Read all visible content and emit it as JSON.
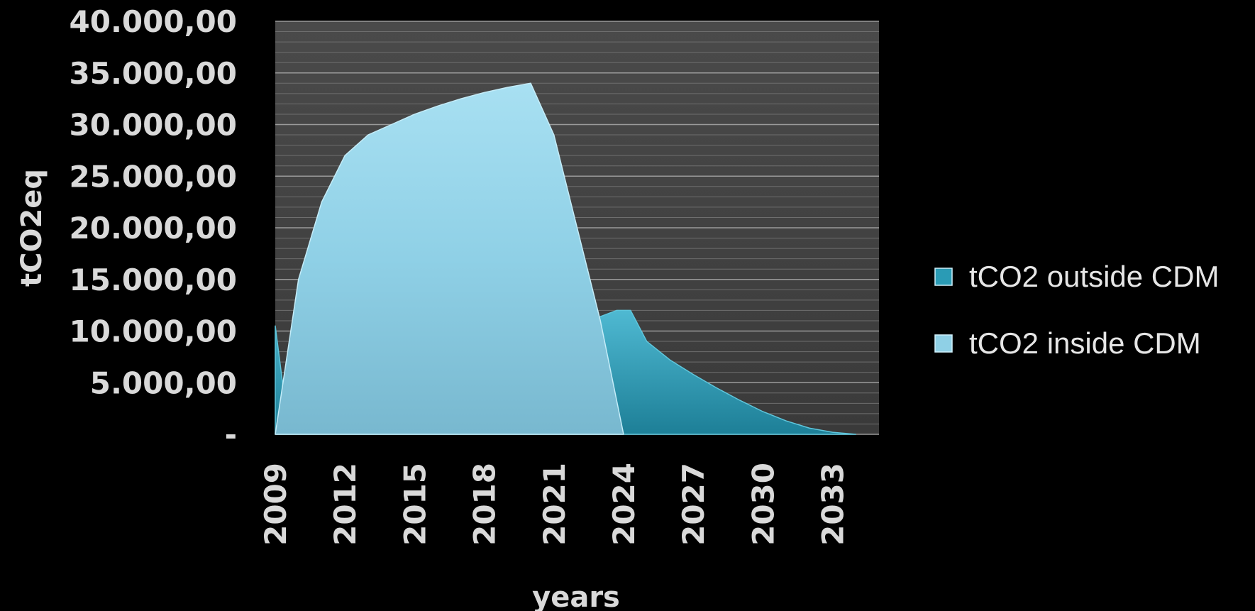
{
  "chart_data": {
    "type": "area",
    "title": "",
    "xlabel": "years",
    "ylabel": "tCO2eq",
    "ylim": [
      0,
      40000
    ],
    "yticks": [
      {
        "value": 0,
        "label": "-"
      },
      {
        "value": 5000,
        "label": "5.000,00"
      },
      {
        "value": 10000,
        "label": "10.000,00"
      },
      {
        "value": 15000,
        "label": "15.000,00"
      },
      {
        "value": 20000,
        "label": "20.000,00"
      },
      {
        "value": 25000,
        "label": "25.000,00"
      },
      {
        "value": 30000,
        "label": "30.000,00"
      },
      {
        "value": 35000,
        "label": "35.000,00"
      },
      {
        "value": 40000,
        "label": "40.000,00"
      }
    ],
    "xlim": [
      2009,
      2035
    ],
    "xticks": [
      2009,
      2012,
      2015,
      2018,
      2021,
      2024,
      2027,
      2030,
      2033
    ],
    "grid": true,
    "legend_position": "right",
    "series": [
      {
        "name": "tCO2 outside CDM",
        "color": "#2a9bb5",
        "points": [
          {
            "x": 2009,
            "y": 10500
          },
          {
            "x": 2009.6,
            "y": 0
          },
          {
            "x": 2023.7,
            "y": 12000
          },
          {
            "x": 2024.3,
            "y": 12000
          },
          {
            "x": 2025,
            "y": 9000
          },
          {
            "x": 2026,
            "y": 7200
          },
          {
            "x": 2027,
            "y": 5800
          },
          {
            "x": 2028,
            "y": 4500
          },
          {
            "x": 2029,
            "y": 3300
          },
          {
            "x": 2030,
            "y": 2200
          },
          {
            "x": 2031,
            "y": 1300
          },
          {
            "x": 2032,
            "y": 600
          },
          {
            "x": 2033,
            "y": 200
          },
          {
            "x": 2034,
            "y": 0
          }
        ]
      },
      {
        "name": "tCO2 inside CDM",
        "color": "#8fd0e6",
        "points": [
          {
            "x": 2009,
            "y": 0
          },
          {
            "x": 2010,
            "y": 15000
          },
          {
            "x": 2011,
            "y": 22500
          },
          {
            "x": 2012,
            "y": 27000
          },
          {
            "x": 2013,
            "y": 29000
          },
          {
            "x": 2014,
            "y": 30000
          },
          {
            "x": 2015,
            "y": 31000
          },
          {
            "x": 2016,
            "y": 31800
          },
          {
            "x": 2017,
            "y": 32500
          },
          {
            "x": 2018,
            "y": 33100
          },
          {
            "x": 2019,
            "y": 33600
          },
          {
            "x": 2020,
            "y": 34000
          },
          {
            "x": 2021,
            "y": 29000
          },
          {
            "x": 2022,
            "y": 20000
          },
          {
            "x": 2023,
            "y": 11000
          },
          {
            "x": 2024,
            "y": 0
          }
        ]
      }
    ]
  }
}
